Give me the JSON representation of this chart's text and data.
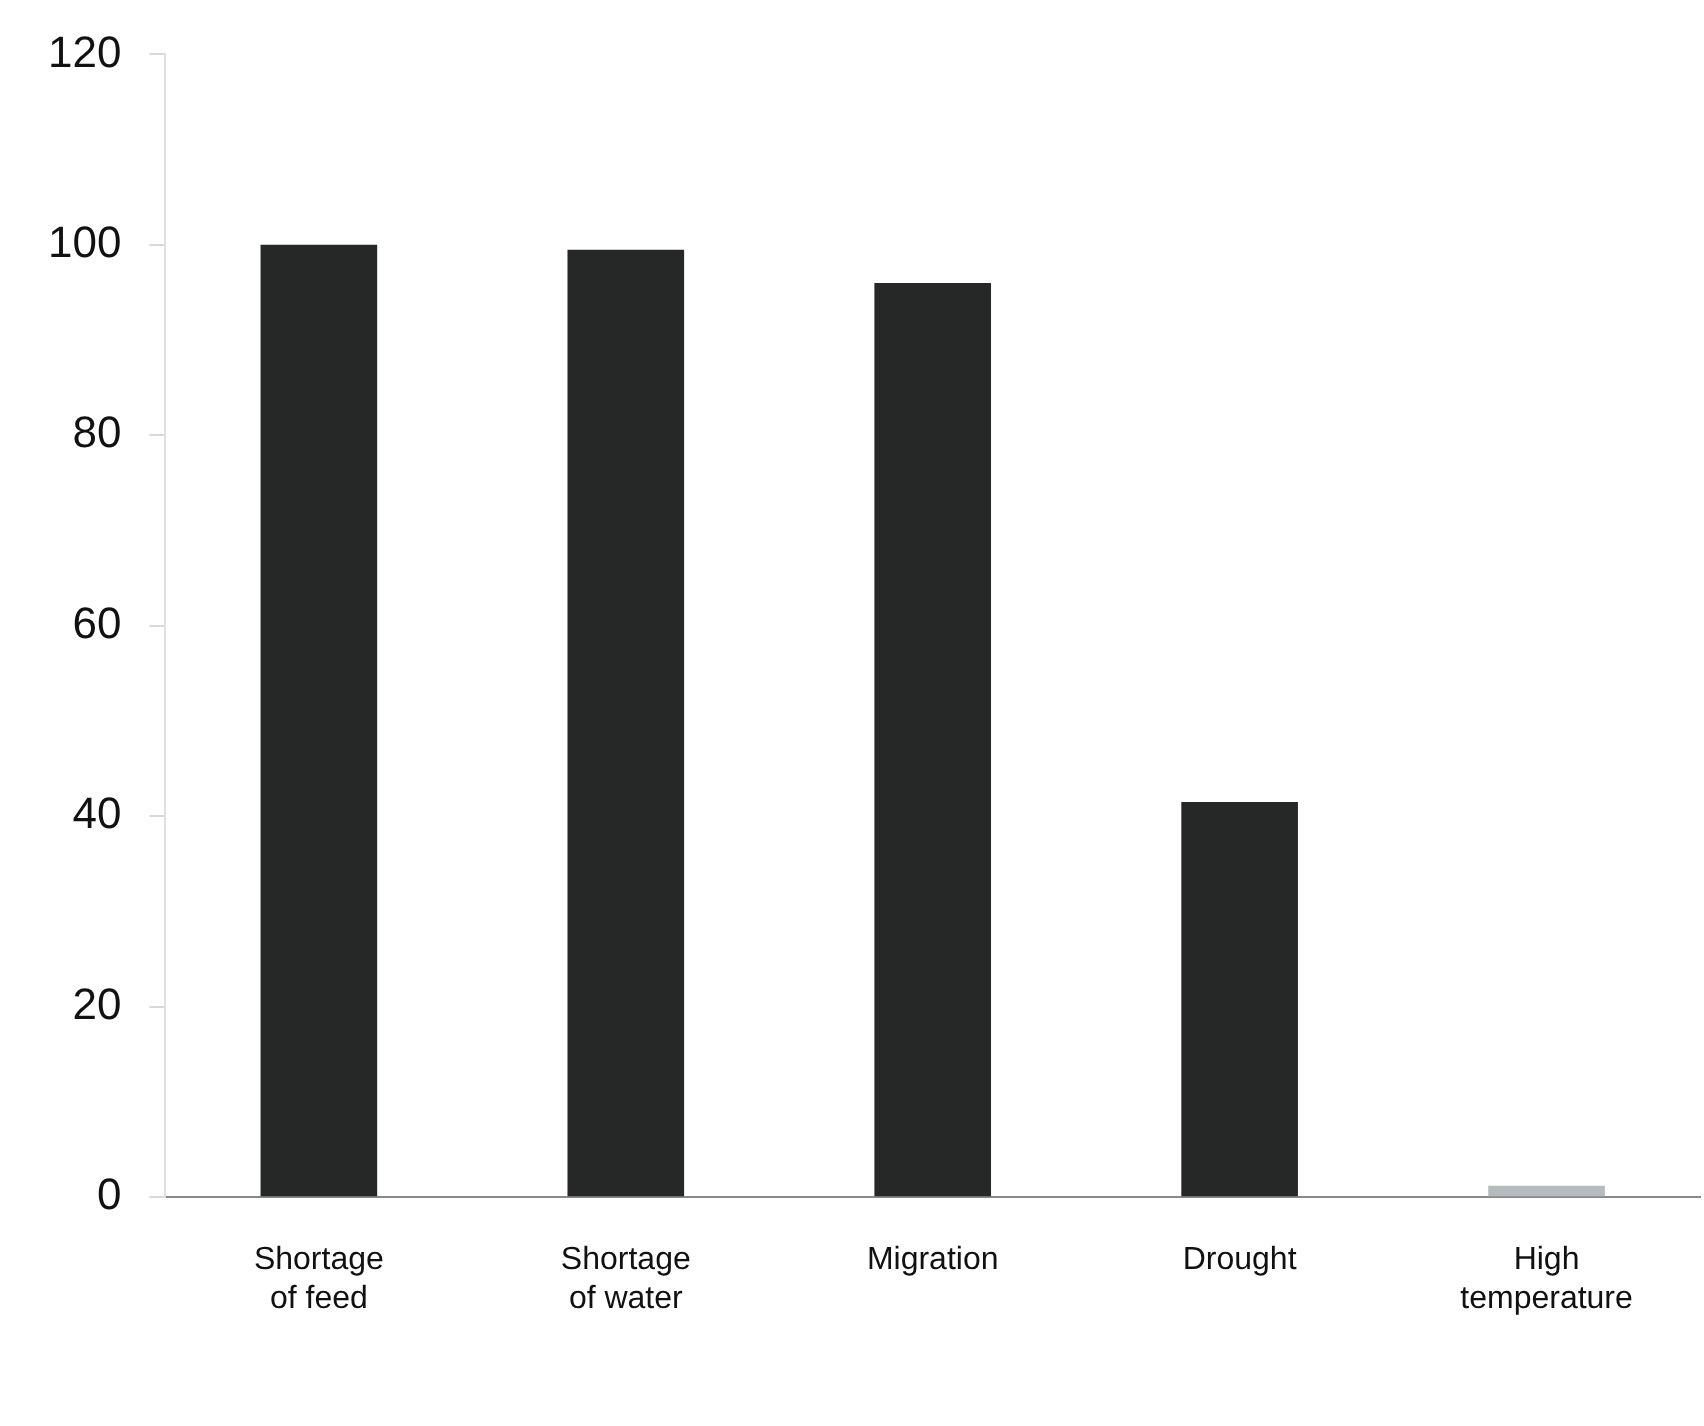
{
  "chart_data": {
    "type": "bar",
    "categories": [
      "Shortage of feed",
      "Shortage of water",
      "Migration",
      "Drought",
      "High temperature"
    ],
    "values": [
      100,
      99.5,
      96,
      41.5,
      1.2
    ],
    "colors": [
      "#262828",
      "#262828",
      "#262828",
      "#262828",
      "#b4bcc0"
    ],
    "ylim": [
      0,
      120
    ],
    "yticks": [
      0,
      20,
      40,
      60,
      80,
      100,
      120
    ],
    "grid": false,
    "legend": false
  }
}
